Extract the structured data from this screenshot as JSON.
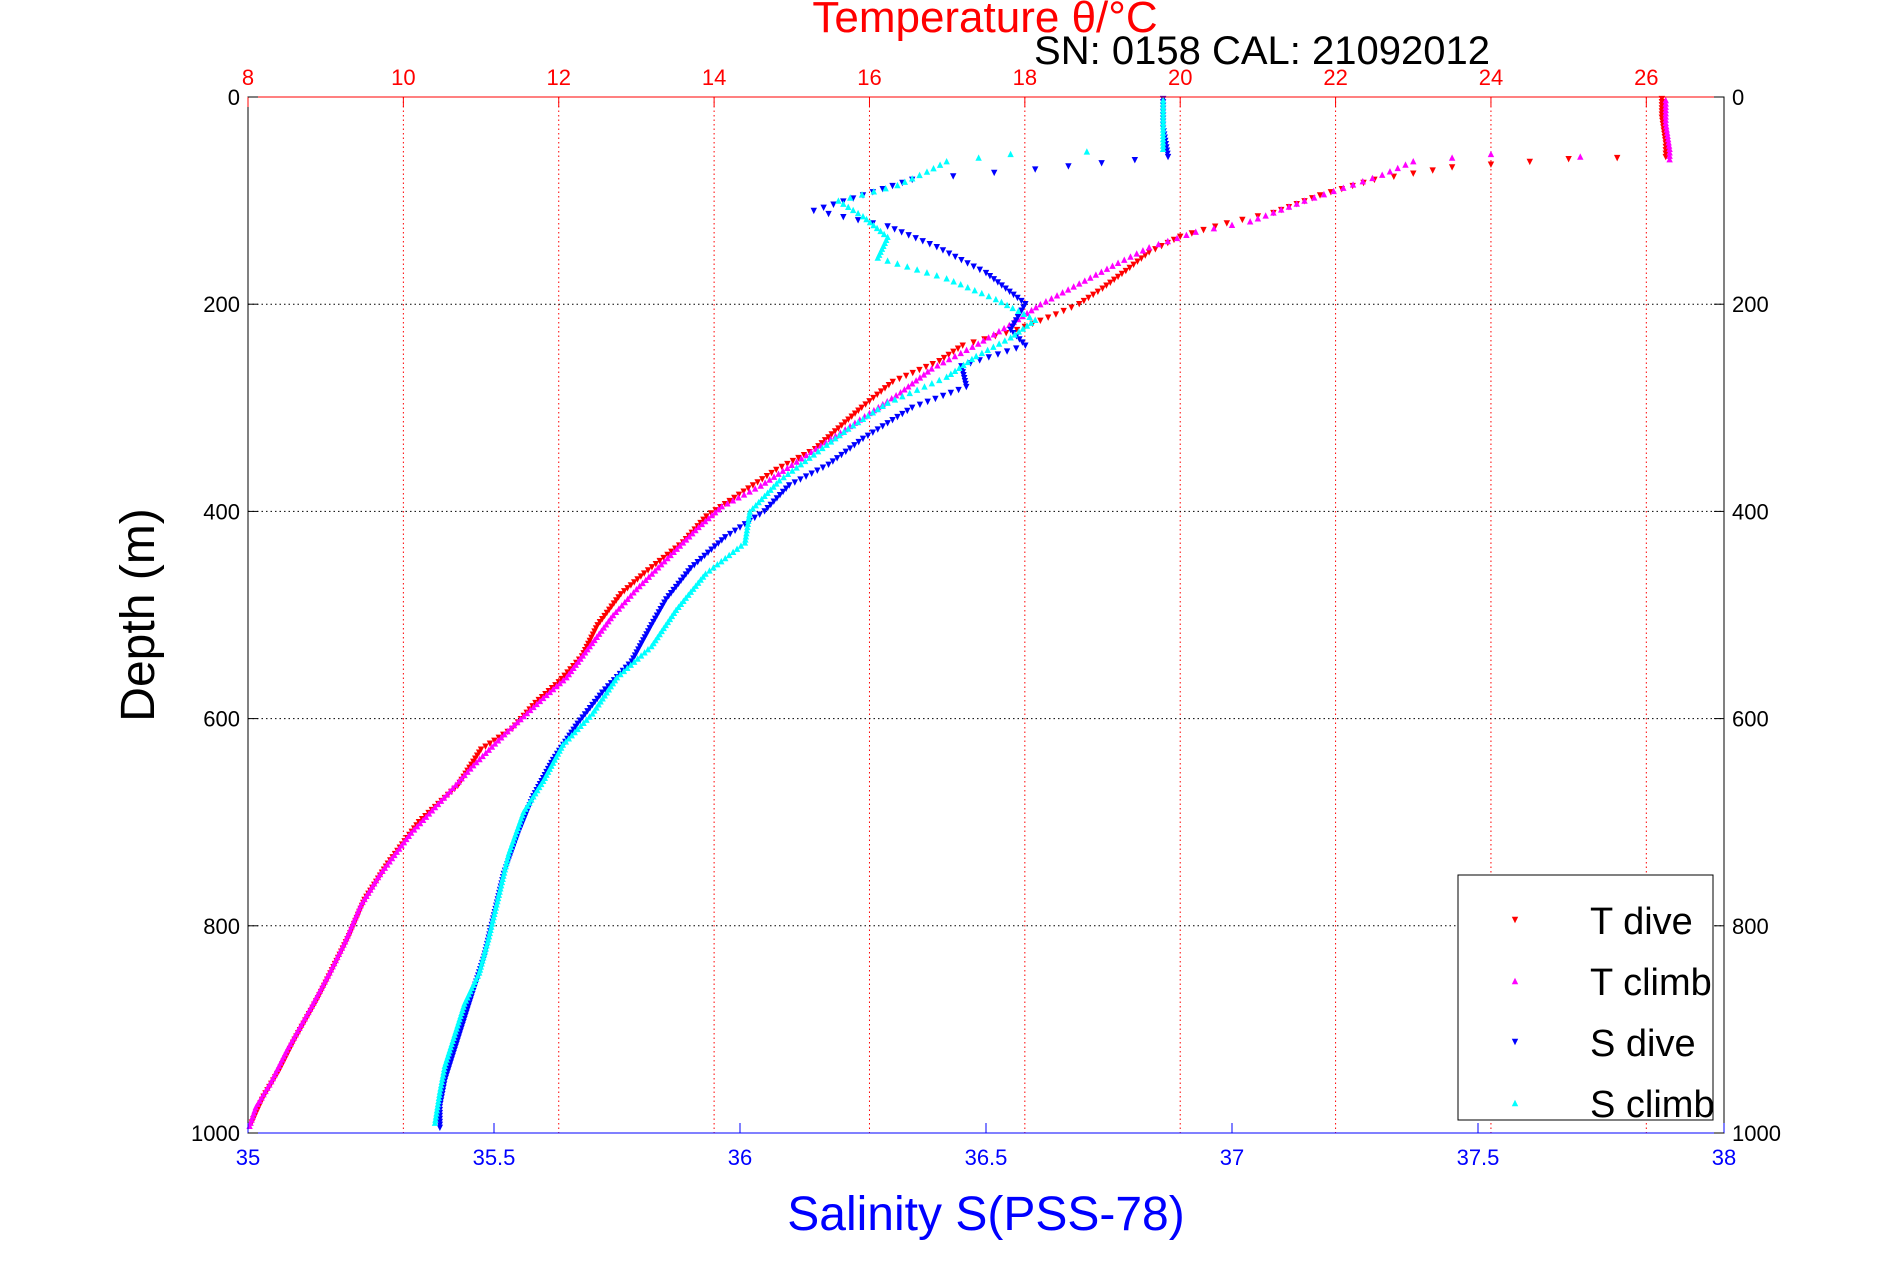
{
  "chart_data": {
    "type": "scatter",
    "title": "Temperature θ/°C",
    "subtitle": "SN: 0158  CAL: 21092012",
    "xlabel": "Salinity S(PSS-78)",
    "ylabel": "Depth (m)",
    "salinity_axis": {
      "range": [
        35,
        38
      ],
      "ticks": [
        "35",
        "35.5",
        "36",
        "36.5",
        "37",
        "37.5",
        "38"
      ],
      "color": "#0000ff"
    },
    "temperature_axis": {
      "range": [
        8,
        27
      ],
      "ticks": [
        "8",
        "10",
        "12",
        "14",
        "16",
        "18",
        "20",
        "22",
        "24",
        "26"
      ],
      "color": "#ff0000"
    },
    "depth_axis": {
      "range": [
        0,
        1000
      ],
      "ticks": [
        "0",
        "200",
        "400",
        "600",
        "800",
        "1000"
      ],
      "reversed": true
    },
    "grid": true,
    "legend_position": "bottom-right",
    "series": [
      {
        "name": "T dive",
        "axis": "temperature",
        "color": "#ff0000",
        "marker": "triangle-down",
        "points": [
          [
            26.2,
            2
          ],
          [
            26.2,
            20
          ],
          [
            26.25,
            45
          ],
          [
            26.25,
            58
          ],
          [
            25,
            60
          ],
          [
            23.5,
            68
          ],
          [
            22.5,
            80
          ],
          [
            21.8,
            95
          ],
          [
            21.2,
            112
          ],
          [
            20.6,
            122
          ],
          [
            20,
            135
          ],
          [
            19.6,
            150
          ],
          [
            19.3,
            168
          ],
          [
            19,
            185
          ],
          [
            18.7,
            200
          ],
          [
            18.4,
            210
          ],
          [
            17.9,
            225
          ],
          [
            17.2,
            240
          ],
          [
            16.9,
            255
          ],
          [
            16.3,
            275
          ],
          [
            15.9,
            300
          ],
          [
            15.6,
            320
          ],
          [
            15.3,
            340
          ],
          [
            14.8,
            360
          ],
          [
            14.5,
            375
          ],
          [
            14.2,
            390
          ],
          [
            13.9,
            405
          ],
          [
            13.6,
            430
          ],
          [
            13.1,
            460
          ],
          [
            12.8,
            480
          ],
          [
            12.5,
            510
          ],
          [
            12.3,
            540
          ],
          [
            12,
            565
          ],
          [
            11.7,
            585
          ],
          [
            11.4,
            610
          ],
          [
            11,
            630
          ],
          [
            10.7,
            665
          ],
          [
            10.2,
            700
          ],
          [
            9.8,
            740
          ],
          [
            9.5,
            775
          ],
          [
            9.3,
            810
          ],
          [
            9.1,
            840
          ],
          [
            8.9,
            870
          ],
          [
            8.6,
            910
          ],
          [
            8.4,
            940
          ],
          [
            8.2,
            965
          ],
          [
            8.05,
            990
          ]
        ]
      },
      {
        "name": "T climb",
        "axis": "temperature",
        "color": "#ff00ff",
        "marker": "triangle-up",
        "points": [
          [
            26.25,
            3
          ],
          [
            26.25,
            25
          ],
          [
            26.3,
            50
          ],
          [
            26.3,
            60
          ],
          [
            24,
            55
          ],
          [
            23,
            62
          ],
          [
            22.6,
            75
          ],
          [
            21.6,
            100
          ],
          [
            20.9,
            120
          ],
          [
            20.2,
            130
          ],
          [
            19.6,
            145
          ],
          [
            19.2,
            160
          ],
          [
            18.7,
            180
          ],
          [
            18.2,
            200
          ],
          [
            17.8,
            220
          ],
          [
            17.4,
            238
          ],
          [
            16.8,
            262
          ],
          [
            16.4,
            285
          ],
          [
            16,
            305
          ],
          [
            15.5,
            330
          ],
          [
            15,
            355
          ],
          [
            14.6,
            375
          ],
          [
            14.1,
            395
          ],
          [
            13.8,
            415
          ],
          [
            13.4,
            445
          ],
          [
            13,
            475
          ],
          [
            12.7,
            500
          ],
          [
            12.4,
            530
          ],
          [
            12.1,
            560
          ],
          [
            11.8,
            580
          ],
          [
            11.3,
            615
          ],
          [
            10.9,
            645
          ],
          [
            10.6,
            670
          ],
          [
            10.1,
            710
          ],
          [
            9.7,
            750
          ],
          [
            9.45,
            780
          ],
          [
            9.25,
            815
          ],
          [
            9.05,
            845
          ],
          [
            8.8,
            880
          ],
          [
            8.5,
            920
          ],
          [
            8.3,
            950
          ],
          [
            8.1,
            975
          ],
          [
            8.02,
            993
          ]
        ]
      },
      {
        "name": "S dive",
        "axis": "salinity",
        "color": "#0000ff",
        "marker": "triangle-down",
        "points": [
          [
            36.86,
            2
          ],
          [
            36.86,
            30
          ],
          [
            36.87,
            58
          ],
          [
            36.6,
            70
          ],
          [
            36.35,
            80
          ],
          [
            36.25,
            95
          ],
          [
            36.15,
            110
          ],
          [
            36.3,
            125
          ],
          [
            36.4,
            145
          ],
          [
            36.5,
            170
          ],
          [
            36.58,
            200
          ],
          [
            36.55,
            225
          ],
          [
            36.58,
            240
          ],
          [
            36.45,
            260
          ],
          [
            36.46,
            280
          ],
          [
            36.35,
            300
          ],
          [
            36.25,
            330
          ],
          [
            36.18,
            355
          ],
          [
            36.1,
            375
          ],
          [
            36.05,
            400
          ],
          [
            35.97,
            425
          ],
          [
            35.9,
            455
          ],
          [
            35.85,
            485
          ],
          [
            35.82,
            510
          ],
          [
            35.78,
            545
          ],
          [
            35.72,
            575
          ],
          [
            35.67,
            605
          ],
          [
            35.62,
            640
          ],
          [
            35.58,
            675
          ],
          [
            35.55,
            710
          ],
          [
            35.52,
            750
          ],
          [
            35.5,
            790
          ],
          [
            35.48,
            830
          ],
          [
            35.46,
            860
          ],
          [
            35.44,
            890
          ],
          [
            35.42,
            920
          ],
          [
            35.4,
            950
          ],
          [
            35.39,
            975
          ],
          [
            35.39,
            995
          ]
        ]
      },
      {
        "name": "S climb",
        "axis": "salinity",
        "color": "#00ffff",
        "marker": "triangle-up",
        "points": [
          [
            36.86,
            3
          ],
          [
            36.86,
            25
          ],
          [
            36.86,
            50
          ],
          [
            36.55,
            55
          ],
          [
            36.42,
            62
          ],
          [
            36.38,
            72
          ],
          [
            36.32,
            85
          ],
          [
            36.2,
            100
          ],
          [
            36.25,
            115
          ],
          [
            36.3,
            135
          ],
          [
            36.28,
            155
          ],
          [
            36.42,
            175
          ],
          [
            36.52,
            195
          ],
          [
            36.6,
            215
          ],
          [
            36.55,
            232
          ],
          [
            36.48,
            250
          ],
          [
            36.42,
            270
          ],
          [
            36.3,
            295
          ],
          [
            36.22,
            320
          ],
          [
            36.15,
            345
          ],
          [
            36.08,
            370
          ],
          [
            36.02,
            400
          ],
          [
            36.01,
            430
          ],
          [
            35.93,
            460
          ],
          [
            35.87,
            495
          ],
          [
            35.82,
            530
          ],
          [
            35.75,
            560
          ],
          [
            35.7,
            595
          ],
          [
            35.64,
            625
          ],
          [
            35.6,
            660
          ],
          [
            35.56,
            690
          ],
          [
            35.53,
            730
          ],
          [
            35.51,
            770
          ],
          [
            35.49,
            810
          ],
          [
            35.47,
            845
          ],
          [
            35.44,
            875
          ],
          [
            35.42,
            905
          ],
          [
            35.4,
            935
          ],
          [
            35.39,
            960
          ],
          [
            35.38,
            990
          ]
        ]
      }
    ]
  }
}
